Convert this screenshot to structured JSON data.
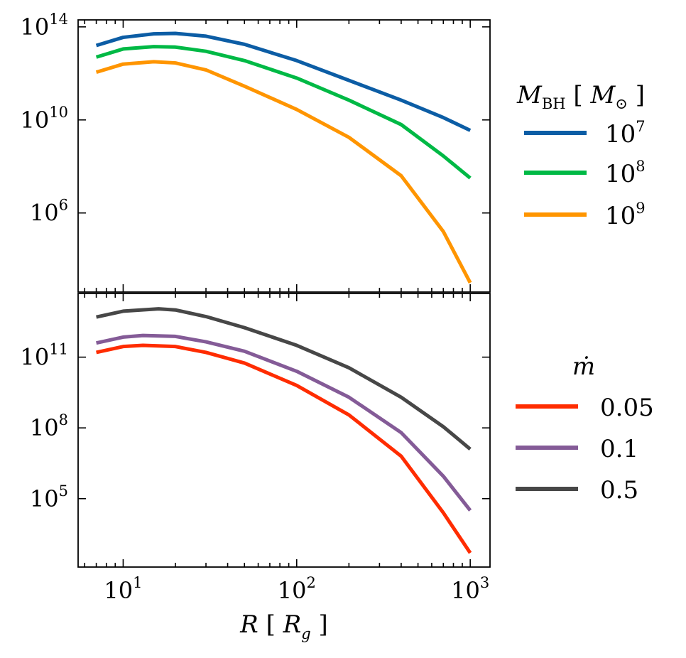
{
  "chart_data": [
    {
      "type": "line",
      "panel": "top",
      "xscale": "log",
      "yscale": "log",
      "xlim": [
        5.5,
        1300
      ],
      "ylim_exp": [
        2.6,
        14.3
      ],
      "yticks": [
        {
          "base": "10",
          "exp": "6",
          "value_exp": 6
        },
        {
          "base": "10",
          "exp": "10",
          "value_exp": 10
        },
        {
          "base": "10",
          "exp": "14",
          "value_exp": 14
        }
      ],
      "legend": {
        "title": {
          "main": "M",
          "sub": "BH",
          "unit_open": "[",
          "unit_main": "M",
          "unit_sub": "⊙",
          "unit_close": "]"
        },
        "placement": "right"
      },
      "series": [
        {
          "name": "10^7",
          "label_base": "10",
          "label_exp": "7",
          "color": "#0C5DA5",
          "x": [
            7,
            10,
            15,
            20,
            30,
            50,
            100,
            200,
            400,
            700,
            1000
          ],
          "y_exp": [
            13.2,
            13.55,
            13.7,
            13.72,
            13.6,
            13.25,
            12.55,
            11.7,
            10.85,
            10.1,
            9.55
          ]
        },
        {
          "name": "10^8",
          "label_base": "10",
          "label_exp": "8",
          "color": "#00B945",
          "x": [
            7,
            10,
            15,
            20,
            30,
            50,
            100,
            200,
            400,
            700,
            1000
          ],
          "y_exp": [
            12.7,
            13.05,
            13.15,
            13.13,
            12.95,
            12.55,
            11.8,
            10.85,
            9.8,
            8.45,
            7.5
          ]
        },
        {
          "name": "10^9",
          "label_base": "10",
          "label_exp": "9",
          "color": "#FF9500",
          "x": [
            7,
            10,
            15,
            20,
            30,
            50,
            100,
            200,
            400,
            700,
            1000
          ],
          "y_exp": [
            12.05,
            12.4,
            12.5,
            12.45,
            12.15,
            11.45,
            10.45,
            9.25,
            7.6,
            5.2,
            3.0
          ]
        }
      ]
    },
    {
      "type": "line",
      "panel": "bottom",
      "xscale": "log",
      "yscale": "log",
      "xlim": [
        5.5,
        1300
      ],
      "ylim_exp": [
        2.1,
        13.7
      ],
      "xticks": [
        {
          "base": "10",
          "exp": "1",
          "value": 10
        },
        {
          "base": "10",
          "exp": "2",
          "value": 100
        },
        {
          "base": "10",
          "exp": "3",
          "value": 1000
        }
      ],
      "yticks": [
        {
          "base": "10",
          "exp": "5",
          "value_exp": 5
        },
        {
          "base": "10",
          "exp": "8",
          "value_exp": 8
        },
        {
          "base": "10",
          "exp": "11",
          "value_exp": 11
        }
      ],
      "xlabel": {
        "main": "R",
        "unit_open": "[",
        "unit_main": "R",
        "unit_sub": "g",
        "unit_close": "]"
      },
      "legend": {
        "title": "ṁ",
        "placement": "right"
      },
      "series": [
        {
          "name": "0.05",
          "label": "0.05",
          "color": "#FF2C00",
          "x": [
            7,
            10,
            13,
            20,
            30,
            50,
            100,
            200,
            400,
            700,
            1000
          ],
          "y_exp": [
            11.2,
            11.45,
            11.5,
            11.45,
            11.2,
            10.75,
            9.8,
            8.55,
            6.8,
            4.4,
            2.7
          ]
        },
        {
          "name": "0.1",
          "label": "0.1",
          "color": "#845B97",
          "x": [
            7,
            10,
            13,
            20,
            30,
            50,
            100,
            200,
            400,
            700,
            1000
          ],
          "y_exp": [
            11.6,
            11.85,
            11.92,
            11.88,
            11.65,
            11.25,
            10.4,
            9.3,
            7.8,
            5.95,
            4.5
          ]
        },
        {
          "name": "0.5",
          "label": "0.5",
          "color": "#474747",
          "x": [
            7,
            10,
            16,
            20,
            30,
            50,
            100,
            200,
            400,
            700,
            1000
          ],
          "y_exp": [
            12.7,
            12.95,
            13.05,
            13.0,
            12.72,
            12.25,
            11.5,
            10.55,
            9.3,
            8.05,
            7.1
          ]
        }
      ]
    }
  ]
}
